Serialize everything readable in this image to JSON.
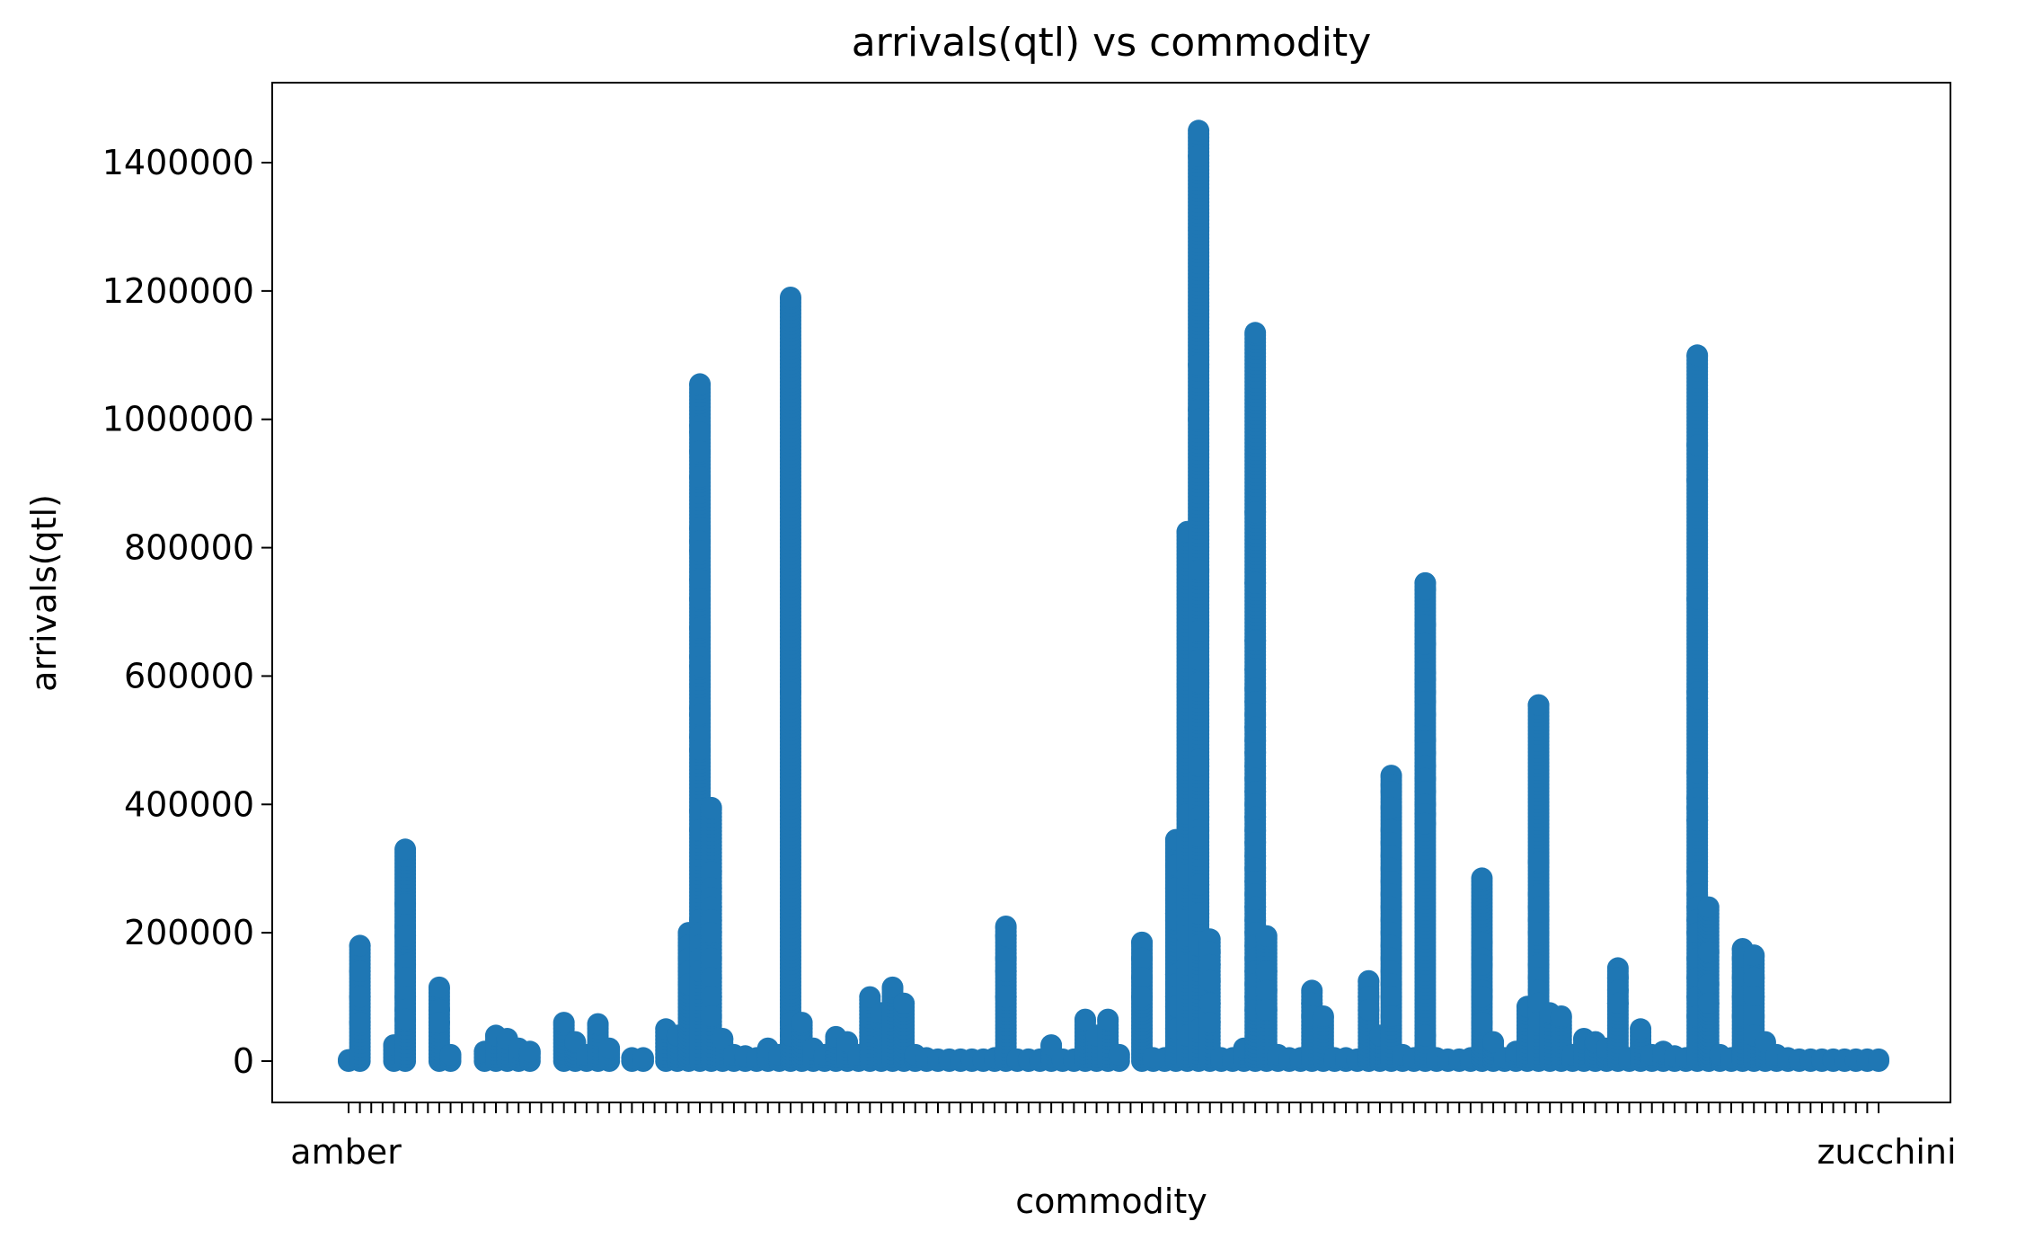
{
  "chart_data": {
    "type": "scatter",
    "title": "arrivals(qtl) vs commodity",
    "xlabel": "commodity",
    "ylabel": "arrivals(qtl)",
    "ylim": [
      -70000,
      1520000
    ],
    "yticks": [
      0,
      200000,
      400000,
      600000,
      800000,
      1000000,
      1200000,
      1400000
    ],
    "ytick_labels": [
      "0",
      "200000",
      "400000",
      "600000",
      "800000",
      "1000000",
      "1200000",
      "1400000"
    ],
    "num_categories": 136,
    "xtick_note": "136 overlapping commodity tick labels; only first and last are legible",
    "first_category": "amber",
    "last_category": "zucchini",
    "grid": false,
    "marker_color": "#1f77b4",
    "columns": [
      {
        "i": 0,
        "max": 2000,
        "pts": []
      },
      {
        "i": 1,
        "max": 180000,
        "pts": [
          140000,
          100000,
          60000
        ]
      },
      {
        "i": 4,
        "max": 25000,
        "pts": []
      },
      {
        "i": 5,
        "max": 330000,
        "pts": [
          245000,
          210000,
          195000,
          150000,
          130000,
          100000,
          80000,
          65000
        ]
      },
      {
        "i": 8,
        "max": 115000,
        "pts": [
          80000,
          60000
        ]
      },
      {
        "i": 9,
        "max": 10000,
        "pts": []
      },
      {
        "i": 12,
        "max": 15000,
        "pts": []
      },
      {
        "i": 13,
        "max": 40000,
        "pts": []
      },
      {
        "i": 14,
        "max": 35000,
        "pts": []
      },
      {
        "i": 15,
        "max": 20000,
        "pts": []
      },
      {
        "i": 16,
        "max": 15000,
        "pts": []
      },
      {
        "i": 19,
        "max": 60000,
        "pts": []
      },
      {
        "i": 20,
        "max": 30000,
        "pts": []
      },
      {
        "i": 21,
        "max": 10000,
        "pts": []
      },
      {
        "i": 22,
        "max": 58000,
        "pts": []
      },
      {
        "i": 23,
        "max": 20000,
        "pts": []
      },
      {
        "i": 25,
        "max": 5000,
        "pts": []
      },
      {
        "i": 26,
        "max": 5000,
        "pts": []
      },
      {
        "i": 28,
        "max": 50000,
        "pts": []
      },
      {
        "i": 29,
        "max": 40000,
        "pts": []
      },
      {
        "i": 30,
        "max": 200000,
        "pts": [
          180000,
          160000,
          140000,
          120000
        ]
      },
      {
        "i": 31,
        "max": 1055000,
        "pts": [
          990000,
          980000,
          950000,
          910000,
          830000,
          810000,
          795000,
          750000,
          720000,
          675000,
          630000,
          615000,
          550000,
          540000,
          505000,
          485000,
          390000,
          360000,
          220000,
          200000,
          180000,
          160000,
          140000
        ]
      },
      {
        "i": 32,
        "max": 395000,
        "pts": [
          295000,
          270000,
          255000,
          240000,
          220000,
          200000,
          160000,
          130000,
          100000,
          70000
        ]
      },
      {
        "i": 33,
        "max": 35000,
        "pts": []
      },
      {
        "i": 34,
        "max": 10000,
        "pts": []
      },
      {
        "i": 35,
        "max": 8000,
        "pts": []
      },
      {
        "i": 36,
        "max": 5000,
        "pts": []
      },
      {
        "i": 37,
        "max": 20000,
        "pts": []
      },
      {
        "i": 38,
        "max": 10000,
        "pts": []
      },
      {
        "i": 39,
        "max": 1190000,
        "pts": [
          575000,
          60000,
          40000
        ]
      },
      {
        "i": 40,
        "max": 60000,
        "pts": []
      },
      {
        "i": 41,
        "max": 20000,
        "pts": []
      },
      {
        "i": 42,
        "max": 10000,
        "pts": []
      },
      {
        "i": 43,
        "max": 38000,
        "pts": []
      },
      {
        "i": 44,
        "max": 30000,
        "pts": []
      },
      {
        "i": 45,
        "max": 10000,
        "pts": []
      },
      {
        "i": 46,
        "max": 100000,
        "pts": []
      },
      {
        "i": 47,
        "max": 75000,
        "pts": []
      },
      {
        "i": 48,
        "max": 115000,
        "pts": []
      },
      {
        "i": 49,
        "max": 90000,
        "pts": []
      },
      {
        "i": 50,
        "max": 10000,
        "pts": []
      },
      {
        "i": 51,
        "max": 5000,
        "pts": []
      },
      {
        "i": 52,
        "max": 3000,
        "pts": []
      },
      {
        "i": 53,
        "max": 3000,
        "pts": []
      },
      {
        "i": 54,
        "max": 3000,
        "pts": []
      },
      {
        "i": 55,
        "max": 3000,
        "pts": []
      },
      {
        "i": 56,
        "max": 3000,
        "pts": []
      },
      {
        "i": 57,
        "max": 5000,
        "pts": []
      },
      {
        "i": 58,
        "max": 210000,
        "pts": [
          195000,
          160000,
          140000,
          100000
        ]
      },
      {
        "i": 59,
        "max": 3000,
        "pts": []
      },
      {
        "i": 60,
        "max": 3000,
        "pts": []
      },
      {
        "i": 61,
        "max": 3000,
        "pts": []
      },
      {
        "i": 62,
        "max": 25000,
        "pts": []
      },
      {
        "i": 63,
        "max": 3000,
        "pts": []
      },
      {
        "i": 64,
        "max": 3000,
        "pts": []
      },
      {
        "i": 65,
        "max": 65000,
        "pts": []
      },
      {
        "i": 66,
        "max": 40000,
        "pts": []
      },
      {
        "i": 67,
        "max": 65000,
        "pts": []
      },
      {
        "i": 68,
        "max": 10000,
        "pts": []
      },
      {
        "i": 70,
        "max": 185000,
        "pts": [
          160000,
          130000,
          100000
        ]
      },
      {
        "i": 71,
        "max": 5000,
        "pts": []
      },
      {
        "i": 72,
        "max": 5000,
        "pts": []
      },
      {
        "i": 73,
        "max": 345000,
        "pts": [
          305000,
          270000,
          250000,
          230000,
          220000,
          135000,
          120000,
          100000,
          85000,
          50000
        ]
      },
      {
        "i": 74,
        "max": 825000,
        "pts": [
          385000,
          290000,
          220000,
          195000,
          150000,
          40000
        ]
      },
      {
        "i": 75,
        "max": 1450000,
        "pts": [
          1410000,
          1085000,
          1015000,
          1000000,
          765000,
          670000,
          625000,
          590000,
          470000,
          460000,
          380000,
          360000,
          350000,
          275000,
          230000,
          180000,
          50000
        ]
      },
      {
        "i": 76,
        "max": 190000,
        "pts": [
          170000,
          150000,
          125000,
          90000,
          60000
        ]
      },
      {
        "i": 77,
        "max": 5000,
        "pts": []
      },
      {
        "i": 78,
        "max": 5000,
        "pts": []
      },
      {
        "i": 79,
        "max": 20000,
        "pts": []
      },
      {
        "i": 80,
        "max": 1135000,
        "pts": [
          855000,
          745000,
          655000,
          610000,
          580000,
          560000,
          540000,
          520000,
          500000,
          480000,
          460000,
          440000,
          420000,
          400000,
          380000,
          360000,
          340000,
          320000,
          300000,
          280000,
          260000,
          240000,
          220000,
          200000,
          180000,
          160000,
          140000,
          120000,
          100000,
          80000
        ]
      },
      {
        "i": 81,
        "max": 195000,
        "pts": [
          140000,
          110000,
          80000
        ]
      },
      {
        "i": 82,
        "max": 10000,
        "pts": []
      },
      {
        "i": 83,
        "max": 5000,
        "pts": []
      },
      {
        "i": 84,
        "max": 5000,
        "pts": []
      },
      {
        "i": 85,
        "max": 110000,
        "pts": [
          90000,
          70000
        ]
      },
      {
        "i": 86,
        "max": 70000,
        "pts": []
      },
      {
        "i": 87,
        "max": 5000,
        "pts": []
      },
      {
        "i": 88,
        "max": 5000,
        "pts": []
      },
      {
        "i": 89,
        "max": 3000,
        "pts": []
      },
      {
        "i": 90,
        "max": 125000,
        "pts": [
          100000,
          80000
        ]
      },
      {
        "i": 91,
        "max": 40000,
        "pts": []
      },
      {
        "i": 92,
        "max": 445000,
        "pts": [
          430000,
          420000,
          395000,
          360000,
          340000,
          320000,
          300000,
          280000,
          260000,
          240000,
          220000,
          200000,
          180000,
          160000,
          140000,
          120000,
          100000,
          70000
        ]
      },
      {
        "i": 93,
        "max": 10000,
        "pts": []
      },
      {
        "i": 94,
        "max": 5000,
        "pts": []
      },
      {
        "i": 95,
        "max": 745000,
        "pts": [
          735000,
          680000,
          650000,
          605000,
          595000,
          575000,
          560000,
          540000,
          500000,
          480000,
          460000,
          440000,
          420000,
          400000,
          385000,
          370000,
          40000
        ]
      },
      {
        "i": 96,
        "max": 5000,
        "pts": []
      },
      {
        "i": 97,
        "max": 3000,
        "pts": []
      },
      {
        "i": 98,
        "max": 3000,
        "pts": []
      },
      {
        "i": 99,
        "max": 5000,
        "pts": []
      },
      {
        "i": 100,
        "max": 285000,
        "pts": [
          185000,
          160000,
          150000,
          110000,
          100000,
          60000
        ]
      },
      {
        "i": 101,
        "max": 30000,
        "pts": []
      },
      {
        "i": 102,
        "max": 5000,
        "pts": []
      },
      {
        "i": 103,
        "max": 15000,
        "pts": []
      },
      {
        "i": 104,
        "max": 85000,
        "pts": []
      },
      {
        "i": 105,
        "max": 555000,
        "pts": [
          310000,
          260000,
          240000,
          220000,
          200000,
          150000,
          130000,
          110000,
          90000,
          60000
        ]
      },
      {
        "i": 106,
        "max": 75000,
        "pts": []
      },
      {
        "i": 107,
        "max": 70000,
        "pts": []
      },
      {
        "i": 108,
        "max": 10000,
        "pts": []
      },
      {
        "i": 109,
        "max": 35000,
        "pts": []
      },
      {
        "i": 110,
        "max": 30000,
        "pts": []
      },
      {
        "i": 111,
        "max": 20000,
        "pts": []
      },
      {
        "i": 112,
        "max": 145000,
        "pts": [
          130000,
          110000,
          90000
        ]
      },
      {
        "i": 113,
        "max": 5000,
        "pts": []
      },
      {
        "i": 114,
        "max": 50000,
        "pts": []
      },
      {
        "i": 115,
        "max": 10000,
        "pts": []
      },
      {
        "i": 116,
        "max": 15000,
        "pts": []
      },
      {
        "i": 117,
        "max": 8000,
        "pts": []
      },
      {
        "i": 118,
        "max": 5000,
        "pts": []
      },
      {
        "i": 119,
        "max": 1100000,
        "pts": [
          960000,
          905000,
          720000,
          575000,
          565000,
          450000,
          410000,
          395000,
          375000,
          295000,
          280000,
          260000,
          240000,
          220000,
          200000,
          160000,
          130000,
          100000,
          70000
        ]
      },
      {
        "i": 120,
        "max": 240000,
        "pts": [
          170000,
          120000,
          90000
        ]
      },
      {
        "i": 121,
        "max": 10000,
        "pts": []
      },
      {
        "i": 122,
        "max": 5000,
        "pts": []
      },
      {
        "i": 123,
        "max": 175000,
        "pts": [
          160000,
          130000,
          100000,
          70000
        ]
      },
      {
        "i": 124,
        "max": 165000,
        "pts": [
          130000,
          100000,
          70000,
          40000
        ]
      },
      {
        "i": 125,
        "max": 30000,
        "pts": []
      },
      {
        "i": 126,
        "max": 10000,
        "pts": []
      },
      {
        "i": 127,
        "max": 5000,
        "pts": []
      },
      {
        "i": 128,
        "max": 3000,
        "pts": []
      },
      {
        "i": 129,
        "max": 3000,
        "pts": []
      },
      {
        "i": 130,
        "max": 3000,
        "pts": []
      },
      {
        "i": 131,
        "max": 3000,
        "pts": []
      },
      {
        "i": 132,
        "max": 3000,
        "pts": []
      },
      {
        "i": 133,
        "max": 3000,
        "pts": []
      },
      {
        "i": 134,
        "max": 3000,
        "pts": []
      },
      {
        "i": 135,
        "max": 3000,
        "pts": []
      }
    ]
  }
}
